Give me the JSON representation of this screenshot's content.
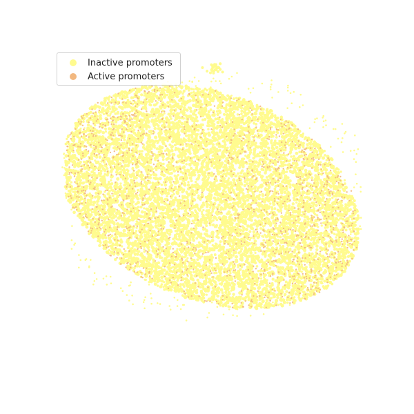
{
  "chart_data": {
    "type": "scatter",
    "title": "",
    "xlabel": "",
    "ylabel": "",
    "axes_visible": false,
    "grid": false,
    "legend_position": "top-left",
    "series": [
      {
        "name": "Inactive promoters",
        "color": "#fffb8f",
        "marker": "dot"
      },
      {
        "name": "Active promoters",
        "color": "#f2b880",
        "marker": "dot"
      }
    ]
  }
}
